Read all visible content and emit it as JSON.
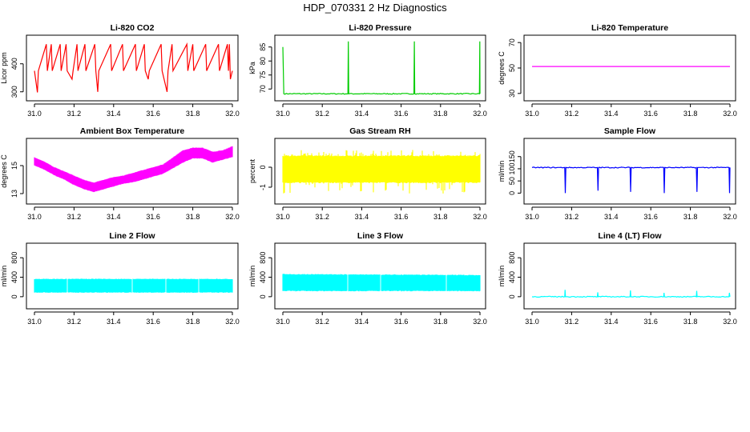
{
  "page": {
    "title": "HDP_070331  2 Hz Diagnostics"
  },
  "chart_data": [
    {
      "type": "line",
      "title": "Li-820 CO2",
      "xlabel": "",
      "ylabel": "Licor ppm",
      "xlim": [
        31.0,
        32.0
      ],
      "ylim": [
        285,
        485
      ],
      "xticks": [
        31.0,
        31.2,
        31.4,
        31.6,
        31.8,
        32.0
      ],
      "yticks": [
        300,
        400
      ],
      "series": [
        {
          "color": "#ff0000",
          "baseline": 375,
          "points": [
            [
              31.0,
              375
            ],
            [
              31.015,
              298
            ],
            [
              31.02,
              375
            ],
            [
              31.06,
              470
            ],
            [
              31.065,
              375
            ],
            [
              31.085,
              470
            ],
            [
              31.09,
              375
            ],
            [
              31.13,
              470
            ],
            [
              31.135,
              375
            ],
            [
              31.16,
              470
            ],
            [
              31.165,
              375
            ],
            [
              31.19,
              345
            ],
            [
              31.195,
              375
            ],
            [
              31.215,
              470
            ],
            [
              31.22,
              375
            ],
            [
              31.255,
              470
            ],
            [
              31.26,
              375
            ],
            [
              31.305,
              470
            ],
            [
              31.31,
              375
            ],
            [
              31.32,
              300
            ],
            [
              31.325,
              375
            ],
            [
              31.385,
              470
            ],
            [
              31.39,
              375
            ],
            [
              31.445,
              470
            ],
            [
              31.45,
              375
            ],
            [
              31.51,
              470
            ],
            [
              31.515,
              375
            ],
            [
              31.555,
              470
            ],
            [
              31.56,
              375
            ],
            [
              31.575,
              345
            ],
            [
              31.58,
              375
            ],
            [
              31.64,
              470
            ],
            [
              31.645,
              375
            ],
            [
              31.67,
              300
            ],
            [
              31.675,
              375
            ],
            [
              31.695,
              470
            ],
            [
              31.7,
              375
            ],
            [
              31.77,
              470
            ],
            [
              31.775,
              375
            ],
            [
              31.8,
              470
            ],
            [
              31.805,
              375
            ],
            [
              31.865,
              470
            ],
            [
              31.87,
              375
            ],
            [
              31.93,
              470
            ],
            [
              31.935,
              375
            ],
            [
              31.975,
              470
            ],
            [
              31.98,
              375
            ],
            [
              31.985,
              470
            ],
            [
              31.99,
              345
            ],
            [
              32.0,
              375
            ]
          ]
        }
      ]
    },
    {
      "type": "line",
      "title": "Li-820 Pressure",
      "xlabel": "",
      "ylabel": "kPa",
      "xlim": [
        31.0,
        32.0
      ],
      "ylim": [
        67.5,
        87.5
      ],
      "xticks": [
        31.0,
        31.2,
        31.4,
        31.6,
        31.8,
        32.0
      ],
      "yticks": [
        70,
        75,
        80,
        85
      ],
      "series": [
        {
          "color": "#00cc00",
          "baseline": 68.3,
          "points": [
            [
              31.0,
              85
            ],
            [
              31.005,
              68.3
            ],
            [
              31.33,
              68.3
            ],
            [
              31.332,
              87
            ],
            [
              31.334,
              68.3
            ],
            [
              31.665,
              68.3
            ],
            [
              31.667,
              87
            ],
            [
              31.669,
              68.3
            ],
            [
              31.997,
              68.3
            ],
            [
              31.999,
              87
            ],
            [
              32.0,
              68.3
            ]
          ]
        }
      ]
    },
    {
      "type": "line",
      "title": "Li-820 Temperature",
      "xlabel": "",
      "ylabel": "degrees C",
      "xlim": [
        31.0,
        32.0
      ],
      "ylim": [
        28,
        72
      ],
      "xticks": [
        31.0,
        31.2,
        31.4,
        31.6,
        31.8,
        32.0
      ],
      "yticks": [
        30,
        50,
        70
      ],
      "series": [
        {
          "color": "#ff00ff",
          "points": [
            [
              31.0,
              51.2
            ],
            [
              32.0,
              51.2
            ]
          ]
        }
      ]
    },
    {
      "type": "area",
      "title": "Ambient Box Temperature",
      "xlabel": "",
      "ylabel": "degrees C",
      "xlim": [
        31.0,
        32.0
      ],
      "ylim": [
        12.6,
        16.6
      ],
      "xticks": [
        31.0,
        31.2,
        31.4,
        31.6,
        31.8,
        32.0
      ],
      "yticks": [
        13,
        15
      ],
      "series": [
        {
          "color": "#ff00ff",
          "x": [
            31.0,
            31.05,
            31.1,
            31.15,
            31.2,
            31.25,
            31.3,
            31.35,
            31.4,
            31.45,
            31.5,
            31.55,
            31.6,
            31.65,
            31.7,
            31.75,
            31.8,
            31.85,
            31.9,
            31.95,
            32.0
          ],
          "lower": [
            15.0,
            14.7,
            14.3,
            14.0,
            13.6,
            13.3,
            13.1,
            13.3,
            13.5,
            13.7,
            13.8,
            14.0,
            14.2,
            14.4,
            14.8,
            15.2,
            15.5,
            15.5,
            15.2,
            15.4,
            15.6
          ],
          "upper": [
            15.6,
            15.3,
            14.9,
            14.6,
            14.3,
            14.0,
            13.8,
            14.0,
            14.2,
            14.3,
            14.5,
            14.7,
            14.9,
            15.1,
            15.6,
            16.1,
            16.3,
            16.3,
            16.0,
            16.1,
            16.4
          ]
        }
      ]
    },
    {
      "type": "area",
      "title": "Gas Stream RH",
      "xlabel": "",
      "ylabel": "percent",
      "xlim": [
        31.0,
        32.0
      ],
      "ylim": [
        -1.6,
        1.2
      ],
      "xticks": [
        31.0,
        31.2,
        31.4,
        31.6,
        31.8,
        32.0
      ],
      "yticks": [
        -1.0,
        0.0
      ],
      "series": [
        {
          "color": "#ffff00",
          "x": [
            31.0,
            32.0
          ],
          "lower": [
            -0.8,
            -0.8
          ],
          "upper": [
            0.6,
            0.6
          ],
          "spike_lower": -1.4,
          "spike_upper": 0.9
        }
      ]
    },
    {
      "type": "line",
      "title": "Sample Flow",
      "xlabel": "",
      "ylabel": "ml/min",
      "xlim": [
        31.0,
        32.0
      ],
      "ylim": [
        -25,
        205
      ],
      "xticks": [
        31.0,
        31.2,
        31.4,
        31.6,
        31.8,
        32.0
      ],
      "yticks": [
        0,
        50,
        100,
        150
      ],
      "series": [
        {
          "color": "#0000ff",
          "baseline": 105,
          "points": [
            [
              31.0,
              105
            ],
            [
              31.165,
              105
            ],
            [
              31.168,
              0
            ],
            [
              31.171,
              105
            ],
            [
              31.33,
              105
            ],
            [
              31.333,
              10
            ],
            [
              31.336,
              105
            ],
            [
              31.495,
              105
            ],
            [
              31.498,
              5
            ],
            [
              31.501,
              105
            ],
            [
              31.665,
              105
            ],
            [
              31.668,
              0
            ],
            [
              31.671,
              105
            ],
            [
              31.83,
              105
            ],
            [
              31.833,
              5
            ],
            [
              31.836,
              105
            ],
            [
              31.995,
              105
            ],
            [
              31.998,
              0
            ],
            [
              32.0,
              105
            ]
          ]
        }
      ]
    },
    {
      "type": "area",
      "title": "Line 2 Flow",
      "xlabel": "",
      "ylabel": "ml/min",
      "xlim": [
        31.0,
        32.0
      ],
      "ylim": [
        -150,
        1000
      ],
      "xticks": [
        31.0,
        31.2,
        31.4,
        31.6,
        31.8,
        32.0
      ],
      "yticks": [
        0,
        400,
        800
      ],
      "series": [
        {
          "color": "#00ffff",
          "x": [
            31.0,
            32.0
          ],
          "lower": [
            80,
            80
          ],
          "upper": [
            370,
            370
          ],
          "gaps": [
            31.165,
            31.33,
            31.495,
            31.665,
            31.83
          ]
        }
      ]
    },
    {
      "type": "area",
      "title": "Line 3 Flow",
      "xlabel": "",
      "ylabel": "ml/min",
      "xlim": [
        31.0,
        32.0
      ],
      "ylim": [
        -150,
        1000
      ],
      "xticks": [
        31.0,
        31.2,
        31.4,
        31.6,
        31.8,
        32.0
      ],
      "yticks": [
        0,
        400,
        800
      ],
      "series": [
        {
          "color": "#00ffff",
          "x": [
            31.0,
            32.0
          ],
          "lower": [
            110,
            110
          ],
          "upper": [
            470,
            450
          ],
          "gaps": [
            31.165,
            31.33,
            31.495,
            31.665,
            31.83
          ]
        }
      ]
    },
    {
      "type": "line",
      "title": "Line 4 (LT) Flow",
      "xlabel": "",
      "ylabel": "ml/min",
      "xlim": [
        31.0,
        32.0
      ],
      "ylim": [
        -150,
        1000
      ],
      "xticks": [
        31.0,
        31.2,
        31.4,
        31.6,
        31.8,
        32.0
      ],
      "yticks": [
        0,
        400,
        800
      ],
      "series": [
        {
          "color": "#00ffff",
          "baseline": 0,
          "points": [
            [
              31.0,
              0
            ],
            [
              31.165,
              0
            ],
            [
              31.167,
              140
            ],
            [
              31.169,
              0
            ],
            [
              31.33,
              0
            ],
            [
              31.332,
              90
            ],
            [
              31.334,
              0
            ],
            [
              31.495,
              0
            ],
            [
              31.497,
              130
            ],
            [
              31.499,
              0
            ],
            [
              31.665,
              0
            ],
            [
              31.667,
              80
            ],
            [
              31.669,
              0
            ],
            [
              31.83,
              0
            ],
            [
              31.832,
              120
            ],
            [
              31.834,
              0
            ],
            [
              31.995,
              0
            ],
            [
              31.997,
              80
            ],
            [
              32.0,
              0
            ]
          ]
        }
      ]
    }
  ]
}
